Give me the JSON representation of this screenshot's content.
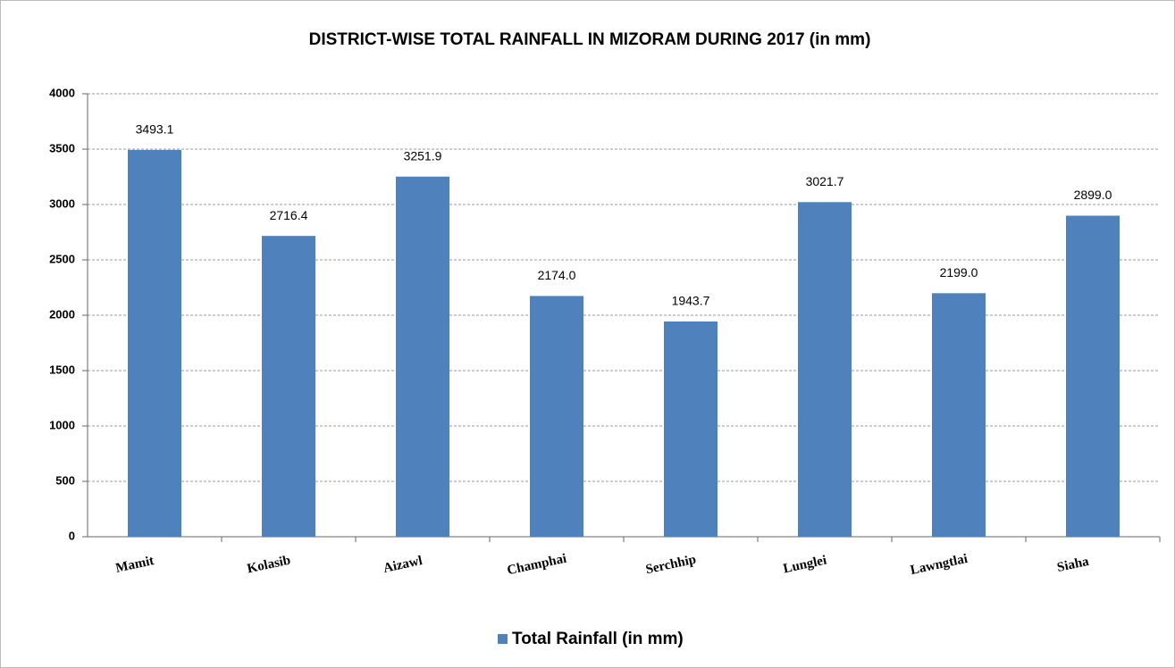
{
  "chart_data": {
    "type": "bar",
    "title": "DISTRICT-WISE TOTAL RAINFALL IN MIZORAM DURING 2017 (in mm)",
    "categories": [
      "Mamit",
      "Kolasib",
      "Aizawl",
      "Champhai",
      "Serchhip",
      "Lunglei",
      "Lawngtlai",
      "Siaha"
    ],
    "series": [
      {
        "name": "Total Rainfall (in mm)",
        "color": "#4f81bd",
        "values": [
          3493.1,
          2716.4,
          3251.9,
          2174.0,
          1943.7,
          3021.7,
          2199.0,
          2899.0
        ],
        "value_labels": [
          "3493.1",
          "2716.4",
          "3251.9",
          "2174.0",
          "1943.7",
          "3021.7",
          "2199.0",
          "2899.0"
        ]
      }
    ],
    "ylim": [
      0,
      4000
    ],
    "yticks": [
      0,
      500,
      1000,
      1500,
      2000,
      2500,
      3000,
      3500,
      4000
    ],
    "grid": true,
    "legend": "bottom"
  }
}
